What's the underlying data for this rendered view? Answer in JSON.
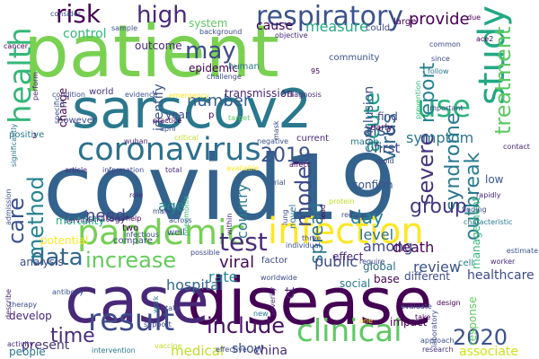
{
  "words": [
    {
      "text": "covid19",
      "color": "#33638d"
    },
    {
      "text": "patient",
      "color": "#7ad151"
    },
    {
      "text": "disease",
      "color": "#440154"
    },
    {
      "text": "case",
      "color": "#482878"
    },
    {
      "text": "sarscov2",
      "color": "#2a788e"
    },
    {
      "text": "coronavirus",
      "color": "#2d708e"
    },
    {
      "text": "pandemic",
      "color": "#75d054"
    },
    {
      "text": "infection",
      "color": "#fde725"
    },
    {
      "text": "study",
      "color": "#22a884"
    },
    {
      "text": "use",
      "color": "#2fb47c"
    },
    {
      "text": "result",
      "color": "#3e4a89"
    },
    {
      "text": "clinical",
      "color": "#5ec962"
    },
    {
      "text": "health",
      "color": "#35b779"
    },
    {
      "text": "respiratory",
      "color": "#3b528b"
    },
    {
      "text": "test",
      "color": "#472d7b"
    },
    {
      "text": "2019",
      "color": "#3b528b"
    },
    {
      "text": "risk",
      "color": "#440154"
    },
    {
      "text": "high",
      "color": "#482878"
    },
    {
      "text": "may",
      "color": "#3e4a89"
    },
    {
      "text": "acute",
      "color": "#1fa088"
    },
    {
      "text": "virus",
      "color": "#31688e"
    },
    {
      "text": "report",
      "color": "#26828e"
    },
    {
      "text": "treatment",
      "color": "#5ec962"
    },
    {
      "text": "severe",
      "color": "#46337e"
    },
    {
      "text": "include",
      "color": "#471063"
    },
    {
      "text": "data",
      "color": "#31688e"
    },
    {
      "text": "increase",
      "color": "#65cb5e"
    },
    {
      "text": "care",
      "color": "#3b528b"
    },
    {
      "text": "method",
      "color": "#26828e"
    },
    {
      "text": "model",
      "color": "#3e4a89"
    },
    {
      "text": "time",
      "color": "#472d7b"
    },
    {
      "text": "outbreak",
      "color": "#297b8e"
    },
    {
      "text": "2020",
      "color": "#3b528b"
    },
    {
      "text": "spread",
      "color": "#2c728e"
    },
    {
      "text": "number",
      "color": "#355f8d"
    },
    {
      "text": "provide",
      "color": "#440154"
    },
    {
      "text": "syndrome",
      "color": "#2a788e"
    },
    {
      "text": "day",
      "color": "#25838e"
    },
    {
      "text": "group",
      "color": "#443983"
    },
    {
      "text": "viral",
      "color": "#46085c"
    },
    {
      "text": "hospital",
      "color": "#31688e"
    },
    {
      "text": "rate",
      "color": "#25848e"
    },
    {
      "text": "review",
      "color": "#3b528b"
    },
    {
      "text": "public",
      "color": "#3e4a89"
    },
    {
      "text": "symptom",
      "color": "#2a778e"
    },
    {
      "text": "also",
      "color": "#3b528b"
    },
    {
      "text": "need",
      "color": "#414487"
    },
    {
      "text": "age",
      "color": "#24878e"
    },
    {
      "text": "level",
      "color": "#2c728e"
    },
    {
      "text": "among",
      "color": "#3e4a89"
    },
    {
      "text": "death",
      "color": "#440154"
    },
    {
      "text": "country",
      "color": "#2a788e"
    },
    {
      "text": "present",
      "color": "#46337e"
    },
    {
      "text": "medical",
      "color": "#bddf26"
    },
    {
      "text": "show",
      "color": "#3b528b"
    },
    {
      "text": "china",
      "color": "#472d7b"
    },
    {
      "text": "associate",
      "color": "#d2e21b"
    },
    {
      "text": "first",
      "color": "#404688"
    },
    {
      "text": "conclusion",
      "color": "#3b528b"
    },
    {
      "text": "control",
      "color": "#35b779"
    },
    {
      "text": "system",
      "color": "#5ec962"
    },
    {
      "text": "cause",
      "color": "#440154"
    },
    {
      "text": "measure",
      "color": "#22a884"
    },
    {
      "text": "identify",
      "color": "#3b528b"
    },
    {
      "text": "epidemic",
      "color": "#440154"
    },
    {
      "text": "transmission",
      "color": "#482878"
    },
    {
      "text": "analysis",
      "color": "#3e4a89"
    },
    {
      "text": "develop",
      "color": "#482878"
    },
    {
      "text": "people",
      "color": "#2a788e"
    },
    {
      "text": "potential",
      "color": "#fde725"
    },
    {
      "text": "two",
      "color": "#440154"
    },
    {
      "text": "compare",
      "color": "#3e4a89"
    },
    {
      "text": "strategy",
      "color": "#482878"
    },
    {
      "text": "well",
      "color": "#3b528b"
    },
    {
      "text": "different",
      "color": "#3e4a89"
    },
    {
      "text": "healthcare",
      "color": "#3e4a89"
    },
    {
      "text": "social",
      "color": "#2a788e"
    },
    {
      "text": "base",
      "color": "#440154"
    },
    {
      "text": "global",
      "color": "#2d708e"
    },
    {
      "text": "effect",
      "color": "#482878"
    },
    {
      "text": "confirm",
      "color": "#3b528b"
    },
    {
      "text": "impact",
      "color": "#440154"
    },
    {
      "text": "year",
      "color": "#3e4a89"
    },
    {
      "text": "world",
      "color": "#46337e"
    },
    {
      "text": "evidence",
      "color": "#3b528b"
    },
    {
      "text": "however",
      "color": "#3e4a89"
    },
    {
      "text": "positive",
      "color": "#2a788e"
    },
    {
      "text": "outcome",
      "color": "#482878"
    },
    {
      "text": "change",
      "color": "#440154"
    },
    {
      "text": "human",
      "color": "#2a788e"
    },
    {
      "text": "current",
      "color": "#482878"
    },
    {
      "text": "march",
      "color": "#2a788e"
    },
    {
      "text": "find",
      "color": "#3e4a89"
    },
    {
      "text": "early",
      "color": "#440154"
    },
    {
      "text": "low",
      "color": "#3b528b"
    },
    {
      "text": "cell",
      "color": "#2a788e"
    },
    {
      "text": "reduce",
      "color": "#3e4a89"
    },
    {
      "text": "mortality",
      "color": "#22a884"
    },
    {
      "text": "service",
      "color": "#482878"
    },
    {
      "text": "response",
      "color": "#5ec962"
    },
    {
      "text": "management",
      "color": "#35b779"
    },
    {
      "text": "could",
      "color": "#3e4a89"
    },
    {
      "text": "large",
      "color": "#440154"
    },
    {
      "text": "emergency",
      "color": "#fde725"
    },
    {
      "text": "diagnosis",
      "color": "#482878"
    },
    {
      "text": "practice",
      "color": "#440154"
    },
    {
      "text": "april",
      "color": "#3b528b"
    },
    {
      "text": "wuhan",
      "color": "#482878"
    },
    {
      "text": "critical",
      "color": "#bddf26"
    },
    {
      "text": "factor",
      "color": "#3e4a89"
    },
    {
      "text": "novel",
      "color": "#2a788e"
    },
    {
      "text": "worker",
      "color": "#482878"
    },
    {
      "text": "evaluate",
      "color": "#3e4a89"
    },
    {
      "text": "take",
      "color": "#440154"
    },
    {
      "text": "research",
      "color": "#46337e"
    },
    {
      "text": "approach",
      "color": "#3b528b"
    },
    {
      "text": "vaccine",
      "color": "#bddf26"
    },
    {
      "text": "effective",
      "color": "#3e4a89"
    },
    {
      "text": "intervention",
      "color": "#2a788e"
    },
    {
      "text": "activity",
      "color": "#482878"
    },
    {
      "text": "support",
      "color": "#3e4a89"
    },
    {
      "text": "severity",
      "color": "#482878"
    },
    {
      "text": "worldwide",
      "color": "#3e4a89"
    },
    {
      "text": "individual",
      "color": "#3b528b"
    },
    {
      "text": "protein",
      "color": "#bddf26"
    },
    {
      "text": "require",
      "color": "#3e4a89"
    },
    {
      "text": "estimate",
      "color": "#3b528b"
    },
    {
      "text": "design",
      "color": "#440154"
    },
    {
      "text": "contact",
      "color": "#482878"
    },
    {
      "text": "laboratory",
      "color": "#3e4a89"
    },
    {
      "text": "consider",
      "color": "#3e4a89"
    },
    {
      "text": "sample",
      "color": "#3b528b"
    },
    {
      "text": "background",
      "color": "#3e4a89"
    },
    {
      "text": "objective",
      "color": "#482878"
    },
    {
      "text": "due",
      "color": "#440154"
    },
    {
      "text": "common",
      "color": "#3e4a89"
    },
    {
      "text": "follow",
      "color": "#2a788e"
    },
    {
      "text": "prevention",
      "color": "#35b779"
    },
    {
      "text": "since",
      "color": "#3e4a89"
    },
    {
      "text": "important",
      "color": "#3b528b"
    },
    {
      "text": "cancer",
      "color": "#440154"
    },
    {
      "text": "perform",
      "color": "#482878"
    },
    {
      "text": "condition",
      "color": "#3e4a89"
    },
    {
      "text": "significantly",
      "color": "#2a788e"
    },
    {
      "text": "target",
      "color": "#5ec962"
    },
    {
      "text": "negative",
      "color": "#3b528b"
    },
    {
      "text": "affect",
      "color": "#440154"
    },
    {
      "text": "available",
      "color": "#fde725"
    },
    {
      "text": "total",
      "color": "#482878"
    },
    {
      "text": "information",
      "color": "#3e4a89"
    },
    {
      "text": "article",
      "color": "#482878"
    },
    {
      "text": "admission",
      "color": "#3b528b"
    },
    {
      "text": "pneumonia",
      "color": "#35b779"
    },
    {
      "text": "rapid",
      "color": "#3e4a89"
    },
    {
      "text": "rapidly",
      "color": "#482878"
    },
    {
      "text": "finding",
      "color": "#3b528b"
    },
    {
      "text": "characteristic",
      "color": "#2a788e"
    },
    {
      "text": "lead",
      "color": "#440154"
    },
    {
      "text": "lung",
      "color": "#3e4a89"
    },
    {
      "text": "trial",
      "color": "#3b528b"
    },
    {
      "text": "role",
      "color": "#482878"
    },
    {
      "text": "make",
      "color": "#3e4a89"
    },
    {
      "text": "across",
      "color": "#3b528b"
    },
    {
      "text": "help",
      "color": "#440154"
    },
    {
      "text": "possible",
      "color": "#3e4a89"
    },
    {
      "text": "within",
      "color": "#482878"
    },
    {
      "text": "infectious",
      "color": "#3b528b"
    },
    {
      "text": "work",
      "color": "#2a788e"
    },
    {
      "text": "state",
      "color": "#3e4a89"
    },
    {
      "text": "antibody",
      "color": "#3b528b"
    },
    {
      "text": "describe",
      "color": "#482878"
    },
    {
      "text": "therapy",
      "color": "#3e4a89"
    },
    {
      "text": "one",
      "color": "#fde725"
    },
    {
      "text": "95",
      "color": "#440154"
    },
    {
      "text": "community",
      "color": "#3b528b"
    },
    {
      "text": "challenge",
      "color": "#3e4a89"
    },
    {
      "text": "ace2",
      "color": "#440154"
    },
    {
      "text": "three",
      "color": "#3e4a89"
    },
    {
      "text": "new",
      "color": "#2a788e"
    },
    {
      "text": "ct",
      "color": "#482878"
    },
    {
      "text": "2",
      "color": "#440154"
    },
    {
      "text": "3",
      "color": "#3b528b"
    },
    {
      "text": "p",
      "color": "#440154"
    },
    {
      "text": "aim",
      "color": "#3e4a89"
    },
    {
      "text": "specific",
      "color": "#3b528b"
    },
    {
      "text": "mask",
      "color": "#3e4a89"
    }
  ]
}
